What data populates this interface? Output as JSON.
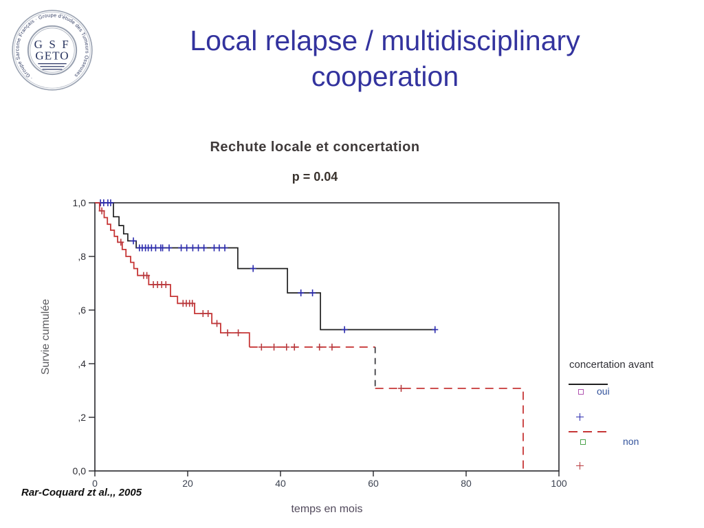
{
  "slide": {
    "title_line1": "Local relapse / multidisciplinary",
    "title_line2": "cooperation",
    "title_color": "#33339e",
    "citation": "Rar-Coquard zt al.,, 2005"
  },
  "logo": {
    "ring_text": "· Groupe Sarcome Français · Groupe d'étude des Tumeurs Osseuses",
    "center_line1": "G S F",
    "center_line2": "GETO"
  },
  "chart_data": {
    "type": "line",
    "subtype": "kaplan-meier-step",
    "title": "Rechute locale et concertation",
    "p_value_label": "p = 0.04",
    "xlabel": "temps en mois",
    "ylabel": "Survie cumulée",
    "xlim": [
      0,
      100
    ],
    "ylim": [
      0,
      1
    ],
    "x_ticks": [
      0,
      20,
      40,
      60,
      80,
      100
    ],
    "y_ticks": [
      "1,0",
      ",8",
      ",6",
      ",4",
      ",2",
      "0,0"
    ],
    "y_tick_values": [
      1.0,
      0.8,
      0.6,
      0.4,
      0.2,
      0.0
    ],
    "grid": false,
    "frame_color": "#26262b",
    "legend": {
      "title": "concertation avant",
      "position": "right",
      "label_color": "#33539c",
      "items": [
        {
          "sample": "solid-line",
          "color": "#1f1f1f",
          "label": ""
        },
        {
          "sample": "square-outline",
          "color": "#b052b0",
          "label": "oui"
        },
        {
          "sample": "plus",
          "color": "#2a2aae",
          "label": ""
        },
        {
          "sample": "dashed-line",
          "color": "#c63535",
          "label": ""
        },
        {
          "sample": "square-outline",
          "color": "#4aa34a",
          "label": "non"
        },
        {
          "sample": "plus",
          "color": "#b8383c",
          "label": ""
        }
      ]
    },
    "series": [
      {
        "name": "oui",
        "line_color": "#1f1f1f",
        "line_style": "solid",
        "steps": [
          [
            0,
            1
          ],
          [
            4,
            1
          ],
          [
            4,
            0.948
          ],
          [
            5.2,
            0.948
          ],
          [
            5.2,
            0.915
          ],
          [
            6.2,
            0.915
          ],
          [
            6.2,
            0.884
          ],
          [
            7.1,
            0.884
          ],
          [
            7.1,
            0.858
          ],
          [
            8.9,
            0.858
          ],
          [
            8.9,
            0.832
          ],
          [
            30.8,
            0.832
          ],
          [
            30.8,
            0.755
          ],
          [
            41.5,
            0.755
          ],
          [
            41.5,
            0.664
          ],
          [
            48.6,
            0.664
          ],
          [
            48.6,
            0.527
          ],
          [
            73.3,
            0.527
          ]
        ],
        "censor_color": "#2a2aae",
        "censors": [
          [
            1.2,
            1
          ],
          [
            1.9,
            1
          ],
          [
            2.8,
            1
          ],
          [
            3.4,
            1
          ],
          [
            8.3,
            0.858
          ],
          [
            9.6,
            0.832
          ],
          [
            10.2,
            0.832
          ],
          [
            10.9,
            0.832
          ],
          [
            11.5,
            0.832
          ],
          [
            12.2,
            0.832
          ],
          [
            13.1,
            0.832
          ],
          [
            14.2,
            0.832
          ],
          [
            14.6,
            0.832
          ],
          [
            16,
            0.832
          ],
          [
            18.6,
            0.832
          ],
          [
            19.8,
            0.832
          ],
          [
            21.1,
            0.832
          ],
          [
            22.3,
            0.832
          ],
          [
            23.5,
            0.832
          ],
          [
            25.7,
            0.832
          ],
          [
            26.8,
            0.832
          ],
          [
            28,
            0.832
          ],
          [
            34.1,
            0.755
          ],
          [
            44.4,
            0.664
          ],
          [
            46.9,
            0.664
          ],
          [
            53.8,
            0.527
          ],
          [
            73.3,
            0.527
          ]
        ]
      },
      {
        "name": "non",
        "line_color": "#c63535",
        "line_style": "solid-then-dashed",
        "solid_steps": [
          [
            0,
            1
          ],
          [
            1,
            1
          ],
          [
            1,
            0.97
          ],
          [
            2,
            0.97
          ],
          [
            2,
            0.945
          ],
          [
            2.7,
            0.945
          ],
          [
            2.7,
            0.92
          ],
          [
            3.4,
            0.92
          ],
          [
            3.4,
            0.898
          ],
          [
            4.2,
            0.898
          ],
          [
            4.2,
            0.875
          ],
          [
            4.9,
            0.875
          ],
          [
            4.9,
            0.853
          ],
          [
            5.9,
            0.853
          ],
          [
            5.9,
            0.826
          ],
          [
            6.7,
            0.826
          ],
          [
            6.7,
            0.8
          ],
          [
            7.7,
            0.8
          ],
          [
            7.7,
            0.778
          ],
          [
            8.4,
            0.778
          ],
          [
            8.4,
            0.755
          ],
          [
            9.2,
            0.755
          ],
          [
            9.2,
            0.729
          ],
          [
            11.6,
            0.729
          ],
          [
            11.6,
            0.695
          ],
          [
            16.3,
            0.695
          ],
          [
            16.3,
            0.651
          ],
          [
            17.8,
            0.651
          ],
          [
            17.8,
            0.625
          ],
          [
            21.5,
            0.625
          ],
          [
            21.5,
            0.587
          ],
          [
            25.2,
            0.587
          ],
          [
            25.2,
            0.55
          ],
          [
            27.1,
            0.55
          ],
          [
            27.1,
            0.515
          ],
          [
            33.3,
            0.515
          ],
          [
            33.3,
            0.462
          ]
        ],
        "dashed_segments": [
          {
            "points": [
              [
                33.3,
                0.462
              ],
              [
                60.4,
                0.462
              ]
            ],
            "color": "#c63535",
            "dash": "12 8"
          },
          {
            "points": [
              [
                60.4,
                0.462
              ],
              [
                60.4,
                0.308
              ]
            ],
            "color": "#3f3f44",
            "dash": "9 7"
          },
          {
            "points": [
              [
                60.4,
                0.308
              ],
              [
                92.3,
                0.308
              ],
              [
                92.3,
                0
              ]
            ],
            "color": "#c63535",
            "dash": "12 8"
          }
        ],
        "censor_color": "#b8383c",
        "censors": [
          [
            1.5,
            0.97
          ],
          [
            5.6,
            0.853
          ],
          [
            10.5,
            0.729
          ],
          [
            11.2,
            0.729
          ],
          [
            12.6,
            0.695
          ],
          [
            13.5,
            0.695
          ],
          [
            14.4,
            0.695
          ],
          [
            15.3,
            0.695
          ],
          [
            19,
            0.625
          ],
          [
            19.7,
            0.625
          ],
          [
            20.4,
            0.625
          ],
          [
            21,
            0.625
          ],
          [
            23.3,
            0.587
          ],
          [
            24.4,
            0.587
          ],
          [
            26.3,
            0.55
          ],
          [
            28.6,
            0.515
          ],
          [
            30.9,
            0.515
          ],
          [
            35.9,
            0.462
          ],
          [
            38.6,
            0.462
          ],
          [
            41.3,
            0.462
          ],
          [
            43,
            0.462
          ],
          [
            48.4,
            0.462
          ],
          [
            51.1,
            0.462
          ],
          [
            66,
            0.308
          ]
        ]
      }
    ]
  }
}
